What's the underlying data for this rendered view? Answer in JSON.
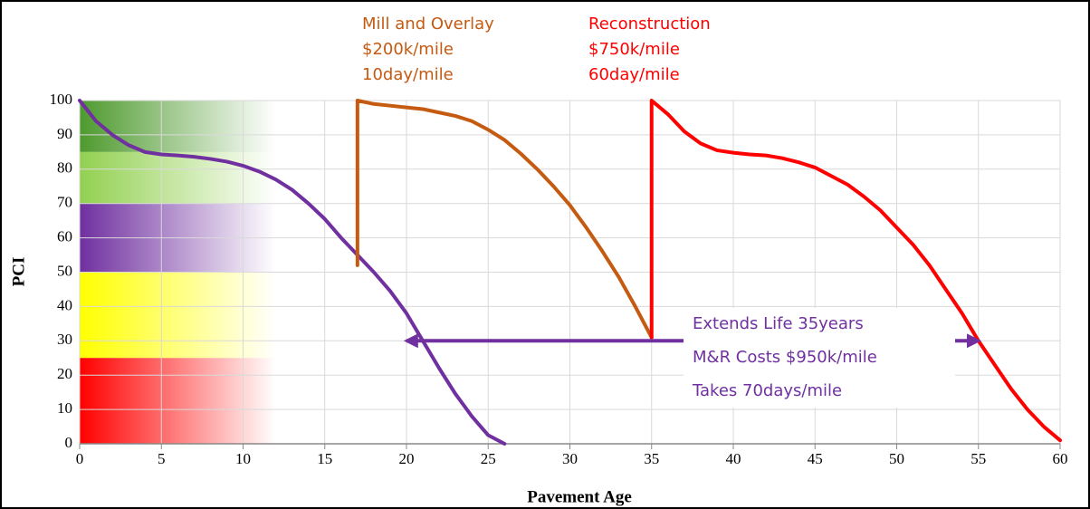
{
  "chart_data": {
    "type": "line",
    "xlabel": "Pavement Age",
    "ylabel": "PCI",
    "xlim": [
      0,
      60
    ],
    "ylim": [
      0,
      100
    ],
    "xticks": [
      0,
      5,
      10,
      15,
      20,
      25,
      30,
      35,
      40,
      45,
      50,
      55,
      60
    ],
    "yticks": [
      0,
      10,
      20,
      30,
      40,
      50,
      60,
      70,
      80,
      90,
      100
    ],
    "grid": true,
    "bands": [
      {
        "x": [
          0,
          12
        ],
        "y": [
          85,
          100
        ],
        "color": "#4e9a2e"
      },
      {
        "x": [
          0,
          12
        ],
        "y": [
          70,
          85
        ],
        "color": "#92d050"
      },
      {
        "x": [
          0,
          12
        ],
        "y": [
          50,
          70
        ],
        "color": "#7030a0"
      },
      {
        "x": [
          0,
          12
        ],
        "y": [
          25,
          50
        ],
        "color": "#ffff00"
      },
      {
        "x": [
          0,
          12
        ],
        "y": [
          0,
          25
        ],
        "color": "#ff0000"
      }
    ],
    "series": [
      {
        "color": "#7030a0",
        "x": [
          0,
          1,
          2,
          3,
          4,
          5,
          6,
          7,
          8,
          9,
          10,
          11,
          12,
          13,
          14,
          15,
          16,
          17,
          18,
          19,
          20,
          21,
          22,
          23,
          24,
          25,
          26
        ],
        "values": [
          100,
          94,
          90,
          87,
          85,
          84.3,
          84,
          83.6,
          83,
          82.2,
          81,
          79.3,
          77,
          74,
          70,
          65.5,
          60,
          55,
          50,
          44.5,
          38,
          30,
          22,
          14.5,
          8,
          2.5,
          0
        ]
      },
      {
        "color": "#c55a11",
        "x": [
          17,
          17,
          18,
          19,
          20,
          21,
          22,
          23,
          24,
          25,
          26,
          27,
          28,
          29,
          30,
          31,
          32,
          33,
          34,
          35
        ],
        "values": [
          52,
          100,
          99,
          98.5,
          98,
          97.5,
          96.5,
          95.5,
          94,
          91.5,
          88.5,
          84.5,
          80,
          75,
          69.5,
          63,
          56,
          48.5,
          40,
          31
        ]
      },
      {
        "color": "#ff0000",
        "x": [
          35,
          35,
          36,
          37,
          38,
          39,
          40,
          41,
          42,
          43,
          44,
          45,
          46,
          47,
          48,
          49,
          50,
          51,
          52,
          53,
          54,
          55,
          56,
          57,
          58,
          59,
          60
        ],
        "values": [
          31,
          100,
          96,
          91,
          87.5,
          85.5,
          84.8,
          84.3,
          84,
          83.2,
          82,
          80.5,
          78,
          75.5,
          72,
          68,
          63,
          58,
          52,
          45,
          38,
          30,
          23,
          16,
          10,
          5,
          1
        ]
      }
    ],
    "annotations": [
      {
        "color": "#c55a11",
        "lines": [
          "Mill and Overlay",
          "$200k/mile",
          "10day/mile"
        ]
      },
      {
        "color": "#ff0000",
        "lines": [
          "Reconstruction",
          "$750k/mile",
          "60day/mile"
        ]
      },
      {
        "color": "#7030a0",
        "lines": [
          "Extends Life 35years",
          "M&R Costs $950k/mile",
          "Takes 70days/mile"
        ]
      }
    ],
    "arrow": {
      "x": [
        20,
        55
      ],
      "y": 30,
      "color": "#7030a0"
    }
  }
}
